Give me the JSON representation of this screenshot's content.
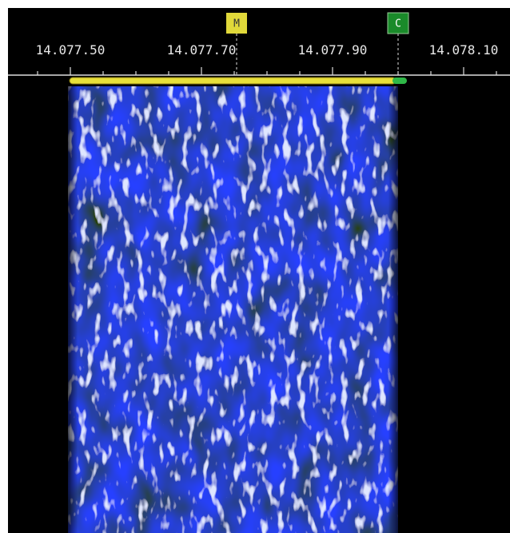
{
  "scale": {
    "labels": [
      "14.077.50",
      "14.077.70",
      "14.077.90",
      "14.078.10"
    ]
  },
  "markers": [
    {
      "label": "M"
    },
    {
      "label": "C"
    }
  ]
}
